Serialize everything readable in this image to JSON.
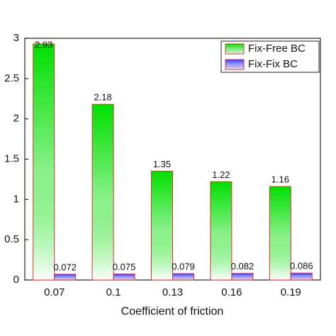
{
  "chart_data": {
    "type": "bar",
    "categories": [
      "0.07",
      "0.1",
      "0.13",
      "0.16",
      "0.19"
    ],
    "series": [
      {
        "name": "Fix-Free BC",
        "color": "#00e000",
        "values": [
          2.93,
          2.18,
          1.35,
          1.22,
          1.16
        ]
      },
      {
        "name": "Fix-Fix BC",
        "color": "#3a3aff",
        "values": [
          0.072,
          0.075,
          0.079,
          0.082,
          0.086
        ]
      }
    ],
    "xlabel": "Coefficient of friction",
    "ylim": [
      0,
      3
    ],
    "yticks": [
      0,
      0.5,
      1,
      1.5,
      2,
      2.5,
      3
    ],
    "legend": "upper right",
    "edgecolor": "#e03030"
  }
}
